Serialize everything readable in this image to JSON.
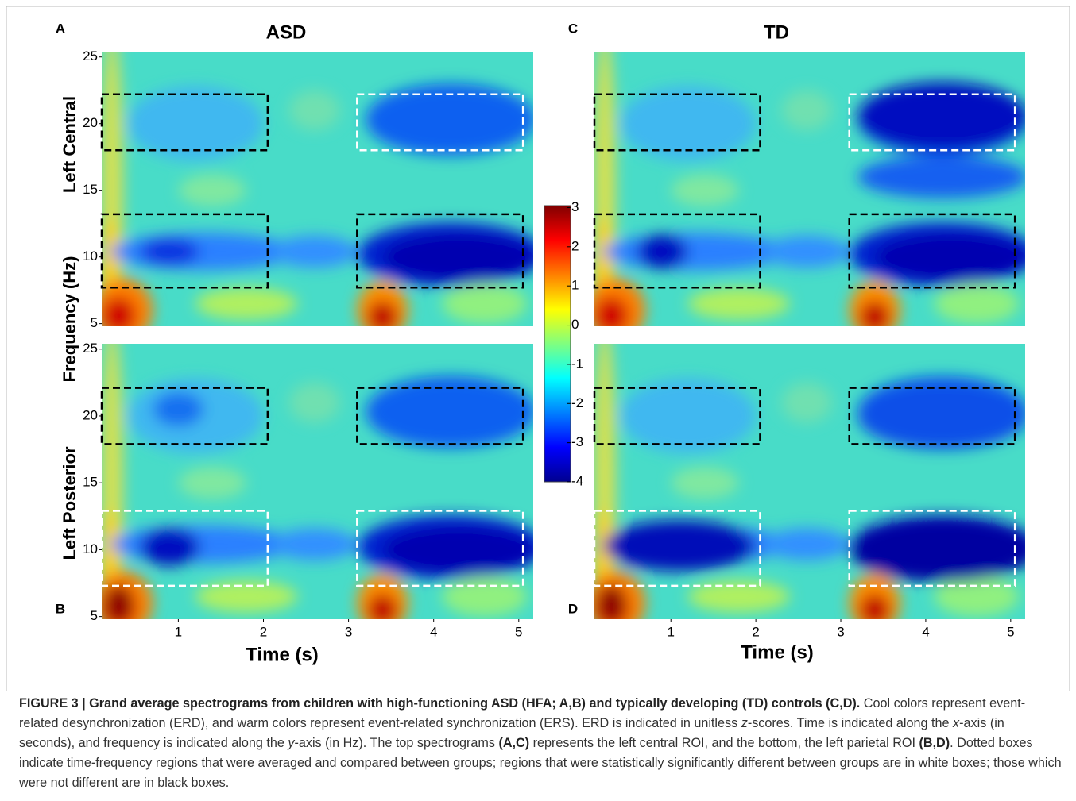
{
  "titles": [
    "ASD",
    "TD"
  ],
  "letters": [
    "A",
    "B",
    "C",
    "D"
  ],
  "row_labels": [
    "Left Central",
    "Left Posterior"
  ],
  "y_label": "Frequency (Hz)",
  "x_label": "Time (s)",
  "xlim": [
    0.1,
    5.17
  ],
  "xticks": [
    1,
    2,
    3,
    4,
    5
  ],
  "ylim": [
    4.8,
    25.4
  ],
  "yticks": [
    5,
    10,
    15,
    20,
    25
  ],
  "colormap": "jet",
  "colorbar": {
    "lim": [
      -4,
      3.05
    ],
    "ticks": [
      -4,
      -3,
      -2,
      -1,
      0,
      1,
      2,
      3
    ]
  },
  "boxes": [
    [
      {
        "xlim": [
          0.1,
          2.05
        ],
        "ylim": [
          18,
          22.2
        ],
        "color": "black"
      },
      {
        "xlim": [
          0.1,
          2.05
        ],
        "ylim": [
          7.7,
          13.2
        ],
        "color": "black"
      },
      {
        "xlim": [
          3.1,
          5.05
        ],
        "ylim": [
          18,
          22.2
        ],
        "color": "white"
      },
      {
        "xlim": [
          3.1,
          5.05
        ],
        "ylim": [
          7.7,
          13.2
        ],
        "color": "black"
      }
    ],
    [
      {
        "xlim": [
          0.1,
          2.05
        ],
        "ylim": [
          17.9,
          22.1
        ],
        "color": "black"
      },
      {
        "xlim": [
          0.1,
          2.05
        ],
        "ylim": [
          7.3,
          12.9
        ],
        "color": "white"
      },
      {
        "xlim": [
          3.1,
          5.05
        ],
        "ylim": [
          17.9,
          22.1
        ],
        "color": "black"
      },
      {
        "xlim": [
          3.1,
          5.05
        ],
        "ylim": [
          7.3,
          12.9
        ],
        "color": "white"
      }
    ],
    [
      {
        "xlim": [
          0.1,
          2.05
        ],
        "ylim": [
          18,
          22.2
        ],
        "color": "black"
      },
      {
        "xlim": [
          0.1,
          2.05
        ],
        "ylim": [
          7.7,
          13.2
        ],
        "color": "black"
      },
      {
        "xlim": [
          3.1,
          5.05
        ],
        "ylim": [
          18,
          22.2
        ],
        "color": "white"
      },
      {
        "xlim": [
          3.1,
          5.05
        ],
        "ylim": [
          7.7,
          13.2
        ],
        "color": "black"
      }
    ],
    [
      {
        "xlim": [
          0.1,
          2.05
        ],
        "ylim": [
          17.9,
          22.1
        ],
        "color": "black"
      },
      {
        "xlim": [
          0.1,
          2.05
        ],
        "ylim": [
          7.3,
          12.9
        ],
        "color": "white"
      },
      {
        "xlim": [
          3.1,
          5.05
        ],
        "ylim": [
          17.9,
          22.1
        ],
        "color": "black"
      },
      {
        "xlim": [
          3.1,
          5.05
        ],
        "ylim": [
          7.3,
          12.9
        ],
        "color": "white"
      }
    ]
  ],
  "caption": [
    "FIGURE 3 | Grand average spectrograms from children with high-functioning ASD (HFA; A,B) and typically developing (TD) controls (C,D).",
    " Cool colors represent event-related desynchronization (ERD), and warm colors represent event-related synchronization (ERS). ERD is indicated in unitless ",
    "z",
    "-scores. Time is indicated along the ",
    "x",
    "-axis (in seconds), and frequency is indicated along the ",
    "y",
    "-axis (in Hz). The top spectrograms ",
    "(A,C)",
    " represents the left central ROI, and the bottom, the left parietal ROI ",
    "(B,D)",
    ". Dotted boxes indicate time-frequency regions that were averaged and compared between groups; regions that were statistically significantly different between groups are in white boxes; those which were not different are in black boxes."
  ]
}
